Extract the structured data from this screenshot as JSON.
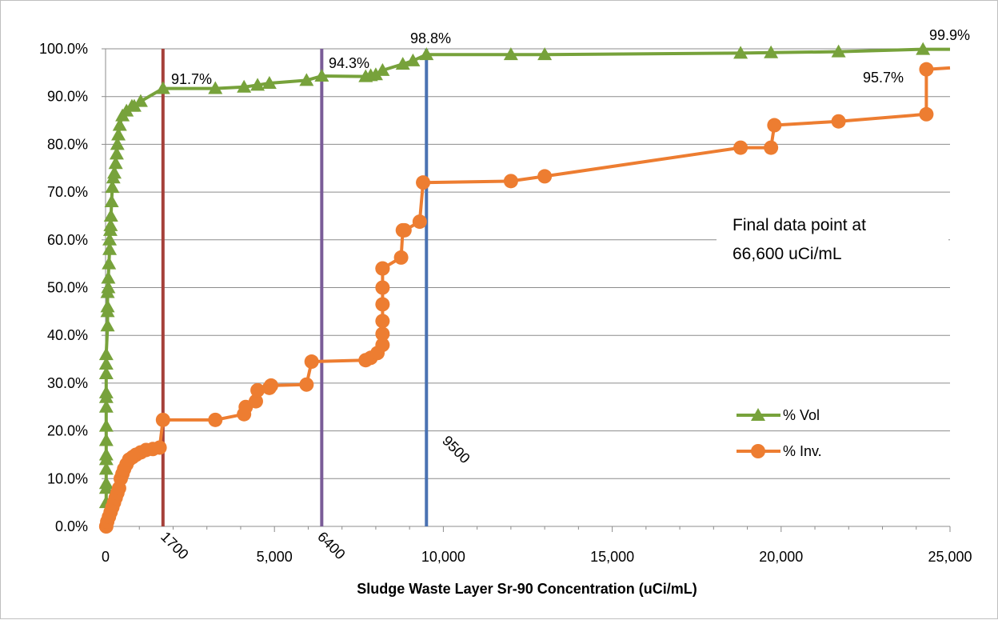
{
  "chart_data": {
    "type": "scatter",
    "xlabel": "Sludge Waste Layer Sr-90 Concentration (uCi/mL)",
    "ylabel": "",
    "xlim": [
      0,
      25000
    ],
    "ylim": [
      0,
      100
    ],
    "x_ticks": [
      "0",
      "5,000",
      "10,000",
      "15,000",
      "20,000",
      "25,000"
    ],
    "y_ticks": [
      "0.0%",
      "10.0%",
      "20.0%",
      "30.0%",
      "40.0%",
      "50.0%",
      "60.0%",
      "70.0%",
      "80.0%",
      "90.0%",
      "100.0%"
    ],
    "grid": "horizontal",
    "legend_position": "right",
    "series": [
      {
        "name": "% Vol",
        "color": "#77a23b",
        "marker": "triangle",
        "x": [
          20,
          20,
          20,
          20,
          20,
          20,
          20,
          20,
          20,
          20,
          20,
          20,
          20,
          20,
          60,
          60,
          60,
          60,
          80,
          80,
          100,
          120,
          120,
          140,
          150,
          160,
          180,
          200,
          230,
          260,
          300,
          330,
          350,
          380,
          420,
          500,
          620,
          780,
          850,
          1040,
          1700,
          3250,
          4100,
          4500,
          4850,
          5950,
          6400,
          7700,
          7850,
          8000,
          8200,
          8800,
          9100,
          9500,
          12000,
          13000,
          18800,
          19700,
          21700,
          24200
        ],
        "y": [
          5,
          8,
          9,
          12,
          14,
          15,
          18,
          21,
          25,
          27,
          28,
          32,
          34,
          36,
          42,
          45,
          46,
          49,
          50,
          52,
          55,
          58,
          60,
          62,
          63,
          65,
          68,
          71,
          73,
          74,
          76,
          78,
          80,
          82,
          84,
          86,
          87,
          88,
          88,
          89,
          91.7,
          91.7,
          92,
          92.4,
          92.8,
          93.4,
          94.3,
          94.2,
          94.4,
          94.6,
          95.5,
          96.8,
          97.5,
          98.8,
          98.8,
          98.8,
          99.1,
          99.2,
          99.4,
          99.9
        ],
        "annotations": [
          "91.7%",
          "94.3%",
          "98.8%",
          "99.9%"
        ]
      },
      {
        "name": "% Inv.",
        "color": "#ed7d31",
        "marker": "circle",
        "x": [
          20,
          50,
          100,
          150,
          200,
          250,
          300,
          350,
          400,
          450,
          500,
          550,
          620,
          700,
          800,
          900,
          1040,
          1200,
          1400,
          1600,
          1700,
          3250,
          4100,
          4150,
          4450,
          4500,
          4850,
          4900,
          5950,
          6100,
          7700,
          7850,
          8050,
          8200,
          8200,
          8200,
          8200,
          8200,
          8200,
          8200,
          8750,
          8800,
          8850,
          9300,
          9400,
          12000,
          13000,
          18800,
          19700,
          19800,
          21700,
          24300,
          24300
        ],
        "y": [
          0,
          1,
          2,
          3,
          4,
          5,
          6,
          7,
          8,
          10,
          11,
          12,
          13,
          14,
          14.5,
          15,
          15.5,
          16,
          16.2,
          16.5,
          22.3,
          22.3,
          23.5,
          25,
          26.2,
          28.5,
          29,
          29.5,
          29.7,
          34.5,
          34.8,
          35.3,
          36.3,
          38,
          40.3,
          43,
          46.5,
          50,
          54,
          54,
          56.3,
          62,
          62,
          63.8,
          72,
          72.3,
          73.3,
          79.3,
          79.3,
          84,
          84.8,
          86.3,
          95.7
        ],
        "annotations": [
          "95.7%"
        ]
      }
    ],
    "vertical_lines": [
      {
        "x": 1700,
        "label": "1700",
        "color": "#a5403a"
      },
      {
        "x": 6400,
        "label": "6400",
        "color": "#7a5c98"
      },
      {
        "x": 9500,
        "label": "9500",
        "color": "#4a72b2"
      }
    ],
    "note_lines": [
      "Final data point at",
      "66,600 uCi/mL"
    ]
  }
}
